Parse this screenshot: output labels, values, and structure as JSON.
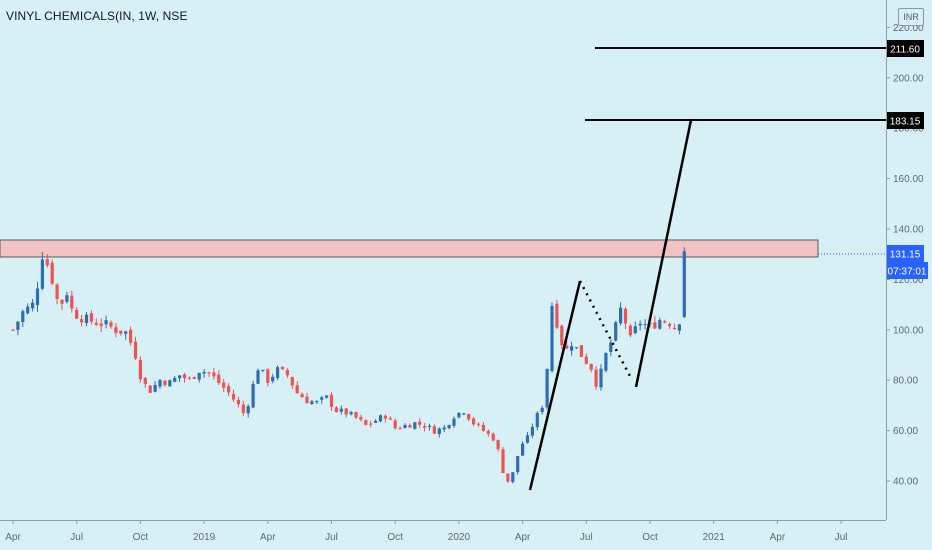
{
  "header": {
    "title": "VINYL CHEMICALS(IN, 1W, NSE",
    "currency": "INR"
  },
  "colors": {
    "background": "#d7f0f5",
    "up": "#2e6db4",
    "down": "#ef5350",
    "zone_fill": "#f3c2c2",
    "zone_border": "#5a5a5a",
    "drawing": "#000000",
    "tag_bg": "#000000",
    "price_tag_bg": "#2962ff"
  },
  "price_axis": {
    "ticks": [
      40,
      60,
      80,
      100,
      120,
      140,
      160,
      180,
      200,
      220
    ],
    "labels": [
      "40.00",
      "60.00",
      "80.00",
      "100.00",
      "120.00",
      "140.00",
      "160.00",
      "180.00",
      "200.00",
      "220.00"
    ]
  },
  "time_axis": {
    "labels": [
      "Apr",
      "Jul",
      "Oct",
      "2019",
      "Apr",
      "Jul",
      "Oct",
      "2020",
      "Apr",
      "Jul",
      "Oct",
      "2021",
      "Apr",
      "Jul"
    ]
  },
  "tags": {
    "target1": "211.60",
    "target2": "183.15",
    "last_price": "131.15",
    "countdown": "07:37:01"
  },
  "chart_data": {
    "type": "candlestick",
    "title": "VINYL CHEMICALS(IN, 1W, NSE",
    "ylim": [
      30,
      220
    ],
    "x_range_weeks": [
      0,
      169
    ],
    "x_ticks": [
      {
        "label": "Apr",
        "week": 0
      },
      {
        "label": "Jul",
        "week": 13
      },
      {
        "label": "Oct",
        "week": 26
      },
      {
        "label": "2019",
        "week": 39
      },
      {
        "label": "Apr",
        "week": 52
      },
      {
        "label": "Jul",
        "week": 65
      },
      {
        "label": "Oct",
        "week": 78
      },
      {
        "label": "2020",
        "week": 91
      },
      {
        "label": "Apr",
        "week": 104
      },
      {
        "label": "Jul",
        "week": 117
      },
      {
        "label": "Oct",
        "week": 130
      },
      {
        "label": "2021",
        "week": 143
      },
      {
        "label": "Apr",
        "week": 156
      },
      {
        "label": "Jul",
        "week": 169
      }
    ],
    "close_path": [
      [
        0,
        100
      ],
      [
        2,
        107
      ],
      [
        4,
        110
      ],
      [
        5,
        118
      ],
      [
        6,
        130
      ],
      [
        7,
        126
      ],
      [
        8,
        120
      ],
      [
        9,
        112
      ],
      [
        10,
        111
      ],
      [
        11,
        115
      ],
      [
        12,
        108
      ],
      [
        13,
        106
      ],
      [
        15,
        104
      ],
      [
        17,
        103
      ],
      [
        19,
        102
      ],
      [
        21,
        100
      ],
      [
        23,
        99
      ],
      [
        24,
        95
      ],
      [
        25,
        90
      ],
      [
        26,
        82
      ],
      [
        27,
        78
      ],
      [
        28,
        76
      ],
      [
        30,
        80
      ],
      [
        32,
        79
      ],
      [
        34,
        82
      ],
      [
        36,
        80
      ],
      [
        38,
        84
      ],
      [
        40,
        83
      ],
      [
        42,
        79
      ],
      [
        44,
        75
      ],
      [
        46,
        70
      ],
      [
        47,
        67
      ],
      [
        48,
        71
      ],
      [
        50,
        85
      ],
      [
        52,
        80
      ],
      [
        54,
        84
      ],
      [
        56,
        82
      ],
      [
        58,
        75
      ],
      [
        60,
        72
      ],
      [
        62,
        71
      ],
      [
        64,
        73
      ],
      [
        66,
        68
      ],
      [
        68,
        67
      ],
      [
        70,
        65
      ],
      [
        72,
        62
      ],
      [
        74,
        64
      ],
      [
        76,
        66
      ],
      [
        78,
        61
      ],
      [
        80,
        62
      ],
      [
        82,
        63
      ],
      [
        84,
        62
      ],
      [
        86,
        60
      ],
      [
        88,
        61
      ],
      [
        90,
        66
      ],
      [
        92,
        68
      ],
      [
        94,
        63
      ],
      [
        96,
        60
      ],
      [
        98,
        57
      ],
      [
        99,
        52
      ],
      [
        100,
        44
      ],
      [
        101,
        40
      ],
      [
        102,
        43
      ],
      [
        103,
        50
      ],
      [
        104,
        55
      ],
      [
        105,
        57
      ],
      [
        106,
        62
      ],
      [
        108,
        70
      ],
      [
        109,
        85
      ],
      [
        110,
        110
      ],
      [
        111,
        103
      ],
      [
        112,
        95
      ],
      [
        113,
        92
      ],
      [
        114,
        95
      ],
      [
        116,
        90
      ],
      [
        118,
        85
      ],
      [
        119,
        79
      ],
      [
        120,
        83
      ],
      [
        121,
        90
      ],
      [
        122,
        95
      ],
      [
        123,
        101
      ],
      [
        124,
        108
      ],
      [
        125,
        103
      ],
      [
        126,
        96
      ],
      [
        127,
        100
      ],
      [
        128,
        103
      ],
      [
        130,
        101
      ],
      [
        132,
        104
      ],
      [
        134,
        103
      ],
      [
        135,
        101
      ],
      [
        136,
        104
      ],
      [
        137,
        131.15
      ]
    ],
    "resistance_zone": {
      "low": 129,
      "high": 136
    },
    "horizontal_levels": [
      211.6,
      183.15
    ],
    "last_price": 131.15,
    "countdown": "07:37:01",
    "currency": "INR"
  }
}
